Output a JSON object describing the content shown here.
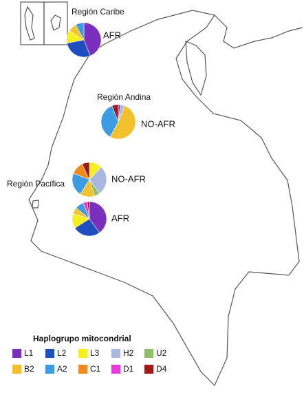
{
  "region_labels": [
    "Región Caribe",
    "Región Andina",
    "Región Pacífica"
  ],
  "pies": [
    {
      "label": "AFR",
      "values": [
        44,
        28,
        12,
        0,
        0,
        8,
        8,
        0,
        0,
        0
      ]
    },
    {
      "label": "NO-AFR",
      "values": [
        2,
        0,
        0,
        4,
        0,
        52,
        36,
        0,
        0,
        6
      ]
    },
    {
      "label": "NO-AFR",
      "values": [
        0,
        0,
        12,
        28,
        5,
        14,
        22,
        12,
        0,
        7
      ]
    },
    {
      "label": "AFR",
      "values": [
        40,
        26,
        14,
        0,
        0,
        6,
        8,
        0,
        4,
        2
      ]
    }
  ],
  "legend": {
    "title": "Haplogrupo mitocondrial",
    "items": [
      {
        "name": "L1",
        "color": "#7b2fbe"
      },
      {
        "name": "L2",
        "color": "#1f4fbf"
      },
      {
        "name": "L3",
        "color": "#f5f01e"
      },
      {
        "name": "H2",
        "color": "#a9b8e0"
      },
      {
        "name": "U2",
        "color": "#8fbf6a"
      },
      {
        "name": "B2",
        "color": "#f2c12e"
      },
      {
        "name": "A2",
        "color": "#3b9be3"
      },
      {
        "name": "C1",
        "color": "#f08a1c"
      },
      {
        "name": "D1",
        "color": "#e83ad8"
      },
      {
        "name": "D4",
        "color": "#a01818"
      }
    ]
  }
}
